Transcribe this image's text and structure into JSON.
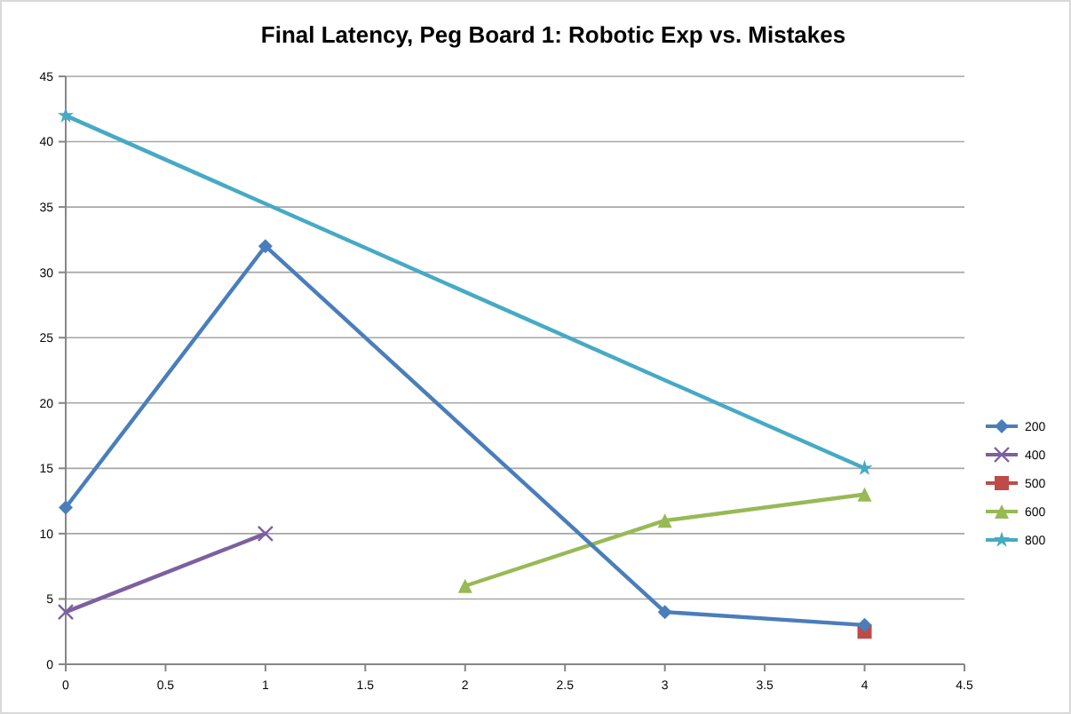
{
  "chart_data": {
    "type": "line",
    "title": "Final Latency, Peg Board 1: Robotic Exp vs. Mistakes",
    "xlim": [
      0,
      4.5
    ],
    "xticks": [
      0,
      0.5,
      1,
      1.5,
      2,
      2.5,
      3,
      3.5,
      4,
      4.5
    ],
    "ylim": [
      0,
      45
    ],
    "yticks": [
      0,
      5,
      10,
      15,
      20,
      25,
      30,
      35,
      40,
      45
    ],
    "grid": "y",
    "legend": "right",
    "series": [
      {
        "name": "200",
        "color": "#4a7ebb",
        "marker": "diamond",
        "x": [
          0,
          1,
          3,
          4
        ],
        "values": [
          12,
          32,
          4,
          3
        ]
      },
      {
        "name": "400",
        "color": "#7d60a0",
        "marker": "cross",
        "x": [
          0,
          1
        ],
        "values": [
          4,
          10
        ]
      },
      {
        "name": "500",
        "color": "#be4b48",
        "marker": "square",
        "x": [
          4
        ],
        "values": [
          2.5
        ]
      },
      {
        "name": "600",
        "color": "#98b954",
        "marker": "triangle",
        "x": [
          2,
          3,
          4
        ],
        "values": [
          6,
          11,
          13
        ]
      },
      {
        "name": "800",
        "color": "#46aac5",
        "marker": "star",
        "x": [
          0,
          4
        ],
        "values": [
          42,
          15
        ]
      }
    ]
  }
}
